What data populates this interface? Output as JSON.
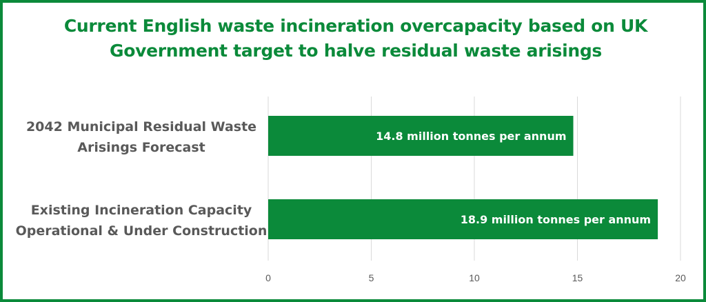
{
  "chart_data": {
    "type": "bar",
    "orientation": "horizontal",
    "title_lines": [
      "Current English waste incineration overcapacity based on UK",
      "Government target to halve residual waste arisings"
    ],
    "categories": [
      [
        "2042 Municipal Residual Waste",
        "Arisings Forecast"
      ],
      [
        "Existing Incineration Capacity",
        "Operational & Under Construction"
      ]
    ],
    "values": [
      14.8,
      18.9
    ],
    "data_labels": [
      "14.8 million tonnes per annum",
      "18.9 million tonnes per annum"
    ],
    "xlim": [
      0,
      20
    ],
    "xticks": [
      "0",
      "5",
      "10",
      "15",
      "20"
    ],
    "grid": true,
    "colors": {
      "bar": "#0b8a3a",
      "title": "#0b8a3a",
      "border": "#0b8a3a",
      "grid": "#d9d9d9",
      "text": "#595959"
    }
  }
}
